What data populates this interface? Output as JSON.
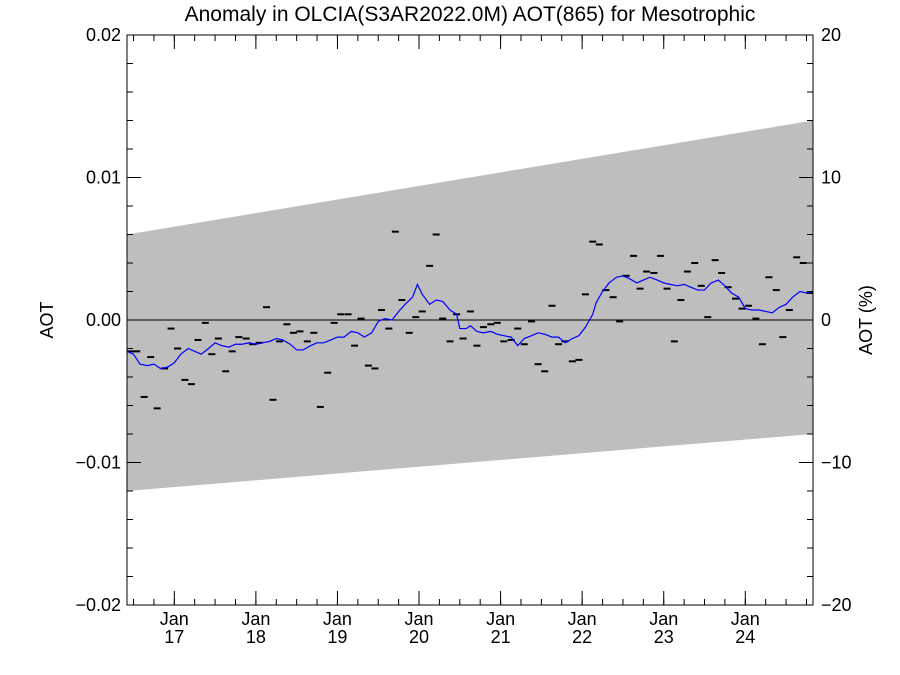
{
  "chart_data": {
    "type": "line",
    "title": "Anomaly in OLCIA(S3AR2022.0M) AOT(865) for Mesotrophic",
    "ylabel": "AOT",
    "ylabel_right": "AOT (%)",
    "ylim": [
      -0.02,
      0.02
    ],
    "ylim_right": [
      -20,
      20
    ],
    "xlim": [
      2016.42,
      2024.83
    ],
    "y_ticks": [
      {
        "value": 0.02,
        "label": "0.02"
      },
      {
        "value": 0.01,
        "label": "0.01"
      },
      {
        "value": 0.0,
        "label": "0.00"
      },
      {
        "value": -0.01,
        "label": "−0.01"
      },
      {
        "value": -0.02,
        "label": "−0.02"
      }
    ],
    "y_right_ticks": [
      {
        "value": 20,
        "label": "20"
      },
      {
        "value": 10,
        "label": "10"
      },
      {
        "value": 0,
        "label": "0"
      },
      {
        "value": -10,
        "label": "−10"
      },
      {
        "value": -20,
        "label": "−20"
      }
    ],
    "x_ticks": [
      {
        "value": 2017,
        "month": "Jan",
        "year": "17"
      },
      {
        "value": 2018,
        "month": "Jan",
        "year": "18"
      },
      {
        "value": 2019,
        "month": "Jan",
        "year": "19"
      },
      {
        "value": 2020,
        "month": "Jan",
        "year": "20"
      },
      {
        "value": 2021,
        "month": "Jan",
        "year": "21"
      },
      {
        "value": 2022,
        "month": "Jan",
        "year": "22"
      },
      {
        "value": 2023,
        "month": "Jan",
        "year": "23"
      },
      {
        "value": 2024,
        "month": "Jan",
        "year": "24"
      }
    ],
    "band": {
      "x": [
        2016.42,
        2024.83
      ],
      "upper": [
        0.006,
        0.014
      ],
      "lower": [
        -0.012,
        -0.008
      ],
      "color": "#bebebe"
    },
    "zero_line": 0.0,
    "monthly_points": [
      [
        2016.46,
        -0.0022
      ],
      [
        2016.54,
        -0.0022
      ],
      [
        2016.63,
        -0.0054
      ],
      [
        2016.71,
        -0.0026
      ],
      [
        2016.79,
        -0.0062
      ],
      [
        2016.88,
        -0.0034
      ],
      [
        2016.96,
        -0.0006
      ],
      [
        2017.04,
        -0.002
      ],
      [
        2017.13,
        -0.0042
      ],
      [
        2017.21,
        -0.0045
      ],
      [
        2017.29,
        -0.0014
      ],
      [
        2017.38,
        -0.0002
      ],
      [
        2017.46,
        -0.0024
      ],
      [
        2017.54,
        -0.0013
      ],
      [
        2017.63,
        -0.0036
      ],
      [
        2017.71,
        -0.0022
      ],
      [
        2017.79,
        -0.0012
      ],
      [
        2017.88,
        -0.0013
      ],
      [
        2017.96,
        -0.0017
      ],
      [
        2018.04,
        -0.0016
      ],
      [
        2018.13,
        0.0009
      ],
      [
        2018.21,
        -0.0056
      ],
      [
        2018.29,
        -0.0015
      ],
      [
        2018.38,
        -0.0003
      ],
      [
        2018.46,
        -0.0009
      ],
      [
        2018.54,
        -0.0008
      ],
      [
        2018.63,
        -0.0015
      ],
      [
        2018.71,
        -0.0009
      ],
      [
        2018.79,
        -0.0061
      ],
      [
        2018.88,
        -0.0037
      ],
      [
        2018.96,
        -0.0002
      ],
      [
        2019.04,
        0.0004
      ],
      [
        2019.13,
        0.0004
      ],
      [
        2019.21,
        -0.0018
      ],
      [
        2019.29,
        0.0001
      ],
      [
        2019.38,
        -0.0032
      ],
      [
        2019.46,
        -0.0034
      ],
      [
        2019.54,
        0.0007
      ],
      [
        2019.63,
        -0.0006
      ],
      [
        2019.71,
        0.0062
      ],
      [
        2019.79,
        0.0014
      ],
      [
        2019.88,
        -0.0009
      ],
      [
        2019.96,
        0.0002
      ],
      [
        2020.04,
        0.0006
      ],
      [
        2020.13,
        0.0038
      ],
      [
        2020.21,
        0.006
      ],
      [
        2020.29,
        0.0001
      ],
      [
        2020.38,
        -0.0015
      ],
      [
        2020.46,
        0.0004
      ],
      [
        2020.54,
        -0.0013
      ],
      [
        2020.63,
        0.0006
      ],
      [
        2020.71,
        -0.0018
      ],
      [
        2020.79,
        -0.0005
      ],
      [
        2020.88,
        -0.0003
      ],
      [
        2020.96,
        -0.0002
      ],
      [
        2021.04,
        -0.0015
      ],
      [
        2021.13,
        -0.0014
      ],
      [
        2021.21,
        -0.0006
      ],
      [
        2021.29,
        -0.0017
      ],
      [
        2021.38,
        -0.0001
      ],
      [
        2021.46,
        -0.0031
      ],
      [
        2021.54,
        -0.0036
      ],
      [
        2021.63,
        0.001
      ],
      [
        2021.71,
        -0.0017
      ],
      [
        2021.79,
        -0.0015
      ],
      [
        2021.88,
        -0.0029
      ],
      [
        2021.96,
        -0.0028
      ],
      [
        2022.04,
        0.0018
      ],
      [
        2022.13,
        0.0055
      ],
      [
        2022.21,
        0.0053
      ],
      [
        2022.29,
        0.0021
      ],
      [
        2022.38,
        0.0016
      ],
      [
        2022.46,
        -0.0001
      ],
      [
        2022.54,
        0.0031
      ],
      [
        2022.63,
        0.0045
      ],
      [
        2022.71,
        0.0022
      ],
      [
        2022.79,
        0.0034
      ],
      [
        2022.88,
        0.0033
      ],
      [
        2022.96,
        0.0045
      ],
      [
        2023.04,
        0.0022
      ],
      [
        2023.13,
        -0.0015
      ],
      [
        2023.21,
        0.0014
      ],
      [
        2023.29,
        0.0034
      ],
      [
        2023.38,
        0.004
      ],
      [
        2023.46,
        0.0024
      ],
      [
        2023.54,
        0.0002
      ],
      [
        2023.63,
        0.0042
      ],
      [
        2023.71,
        0.0033
      ],
      [
        2023.79,
        0.0023
      ],
      [
        2023.88,
        0.0015
      ],
      [
        2023.96,
        0.0008
      ],
      [
        2024.04,
        0.001
      ],
      [
        2024.13,
        0.0001
      ],
      [
        2024.21,
        -0.0017
      ],
      [
        2024.29,
        0.003
      ],
      [
        2024.38,
        0.0021
      ],
      [
        2024.46,
        -0.0012
      ],
      [
        2024.54,
        0.0007
      ],
      [
        2024.63,
        0.0044
      ],
      [
        2024.71,
        0.004
      ],
      [
        2024.79,
        0.0019
      ]
    ],
    "running_mean": {
      "color": "#0000ff",
      "points": [
        [
          2016.42,
          -0.0022
        ],
        [
          2016.5,
          -0.0024
        ],
        [
          2016.58,
          -0.0031
        ],
        [
          2016.67,
          -0.0032
        ],
        [
          2016.75,
          -0.0031
        ],
        [
          2016.83,
          -0.0034
        ],
        [
          2016.92,
          -0.0033
        ],
        [
          2017.0,
          -0.003
        ],
        [
          2017.08,
          -0.0024
        ],
        [
          2017.17,
          -0.002
        ],
        [
          2017.25,
          -0.0022
        ],
        [
          2017.33,
          -0.0024
        ],
        [
          2017.42,
          -0.002
        ],
        [
          2017.5,
          -0.0016
        ],
        [
          2017.58,
          -0.0018
        ],
        [
          2017.67,
          -0.0019
        ],
        [
          2017.75,
          -0.0017
        ],
        [
          2017.83,
          -0.0017
        ],
        [
          2017.92,
          -0.0016
        ],
        [
          2018.0,
          -0.0017
        ],
        [
          2018.08,
          -0.0016
        ],
        [
          2018.17,
          -0.0015
        ],
        [
          2018.25,
          -0.0013
        ],
        [
          2018.33,
          -0.0014
        ],
        [
          2018.42,
          -0.0017
        ],
        [
          2018.5,
          -0.0021
        ],
        [
          2018.58,
          -0.0021
        ],
        [
          2018.67,
          -0.0018
        ],
        [
          2018.75,
          -0.0016
        ],
        [
          2018.83,
          -0.0016
        ],
        [
          2018.92,
          -0.0014
        ],
        [
          2019.0,
          -0.0012
        ],
        [
          2019.08,
          -0.0012
        ],
        [
          2019.17,
          -0.0008
        ],
        [
          2019.25,
          -0.0009
        ],
        [
          2019.33,
          -0.0012
        ],
        [
          2019.42,
          -0.0009
        ],
        [
          2019.5,
          -0.0001
        ],
        [
          2019.58,
          0.0001
        ],
        [
          2019.67,
          0.0
        ],
        [
          2019.75,
          0.0006
        ],
        [
          2019.83,
          0.0011
        ],
        [
          2019.92,
          0.0016
        ],
        [
          2019.98,
          0.0025
        ],
        [
          2020.04,
          0.0018
        ],
        [
          2020.13,
          0.0011
        ],
        [
          2020.21,
          0.0014
        ],
        [
          2020.29,
          0.0013
        ],
        [
          2020.38,
          0.0007
        ],
        [
          2020.46,
          0.0004
        ],
        [
          2020.5,
          -0.0006
        ],
        [
          2020.58,
          -0.0006
        ],
        [
          2020.63,
          -0.0004
        ],
        [
          2020.71,
          -0.0008
        ],
        [
          2020.79,
          -0.0009
        ],
        [
          2020.88,
          -0.0008
        ],
        [
          2020.96,
          -0.001
        ],
        [
          2021.04,
          -0.0011
        ],
        [
          2021.13,
          -0.0012
        ],
        [
          2021.21,
          -0.0018
        ],
        [
          2021.29,
          -0.0013
        ],
        [
          2021.38,
          -0.0011
        ],
        [
          2021.46,
          -0.0009
        ],
        [
          2021.54,
          -0.001
        ],
        [
          2021.63,
          -0.0012
        ],
        [
          2021.71,
          -0.0012
        ],
        [
          2021.79,
          -0.0016
        ],
        [
          2021.88,
          -0.0013
        ],
        [
          2021.96,
          -0.0011
        ],
        [
          2022.04,
          -0.0005
        ],
        [
          2022.13,
          0.0004
        ],
        [
          2022.17,
          0.0012
        ],
        [
          2022.25,
          0.002
        ],
        [
          2022.33,
          0.0026
        ],
        [
          2022.42,
          0.003
        ],
        [
          2022.5,
          0.0031
        ],
        [
          2022.58,
          0.0029
        ],
        [
          2022.67,
          0.0026
        ],
        [
          2022.75,
          0.0028
        ],
        [
          2022.83,
          0.003
        ],
        [
          2022.92,
          0.0028
        ],
        [
          2023.0,
          0.0026
        ],
        [
          2023.08,
          0.0025
        ],
        [
          2023.17,
          0.0024
        ],
        [
          2023.25,
          0.0025
        ],
        [
          2023.33,
          0.0023
        ],
        [
          2023.42,
          0.0021
        ],
        [
          2023.5,
          0.0021
        ],
        [
          2023.58,
          0.0026
        ],
        [
          2023.67,
          0.0028
        ],
        [
          2023.75,
          0.0024
        ],
        [
          2023.83,
          0.0019
        ],
        [
          2023.92,
          0.0016
        ],
        [
          2024.0,
          0.0008
        ],
        [
          2024.08,
          0.0007
        ],
        [
          2024.17,
          0.0007
        ],
        [
          2024.25,
          0.0006
        ],
        [
          2024.33,
          0.0005
        ],
        [
          2024.42,
          0.0009
        ],
        [
          2024.5,
          0.0011
        ],
        [
          2024.58,
          0.0016
        ],
        [
          2024.67,
          0.002
        ],
        [
          2024.75,
          0.0019
        ],
        [
          2024.83,
          0.002
        ]
      ]
    },
    "grid": false,
    "legend": "none"
  }
}
